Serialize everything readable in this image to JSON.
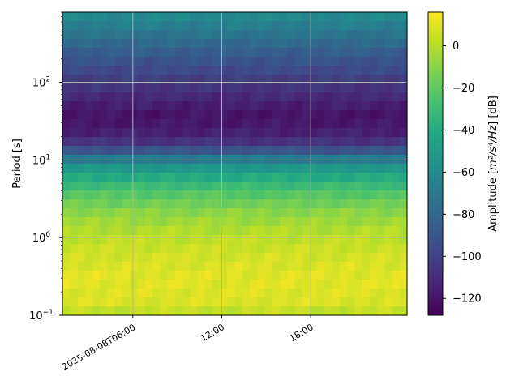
{
  "chart_data": {
    "type": "heatmap",
    "title": "",
    "xlabel": "",
    "ylabel": "Period [s]",
    "colorbar_label_prefix": "Amplitude [",
    "colorbar_label_unit": "m²/s⁴/Hz",
    "colorbar_label_suffix": "] [dB]",
    "colormap": "viridis",
    "x_axis": {
      "type": "time",
      "start": "2025-08-08T01:15:00",
      "end": "2025-08-09T00:30:00",
      "ticks": [
        {
          "time": "2025-08-08T06:00",
          "label": "2025-08-08T06:00"
        },
        {
          "time": "2025-08-08T12:00",
          "label": "12:00"
        },
        {
          "time": "2025-08-08T18:00",
          "label": "18:00"
        }
      ]
    },
    "y_axis": {
      "type": "log",
      "ylim": [
        0.1,
        800
      ],
      "ticks": [
        {
          "value": 0.1,
          "base": "10",
          "exp": "−1"
        },
        {
          "value": 1,
          "base": "10",
          "exp": "0"
        },
        {
          "value": 10,
          "base": "10",
          "exp": "1"
        },
        {
          "value": 100,
          "base": "10",
          "exp": "2"
        }
      ]
    },
    "colorbar": {
      "vmin": -128,
      "vmax": 16,
      "ticks": [
        0,
        -20,
        -40,
        -60,
        -80,
        -100,
        -120
      ]
    },
    "period_profile_db": [
      {
        "period": 0.1,
        "db": 0
      },
      {
        "period": 0.14,
        "db": 8
      },
      {
        "period": 0.3,
        "db": 10
      },
      {
        "period": 0.6,
        "db": 6
      },
      {
        "period": 1.0,
        "db": 2
      },
      {
        "period": 2.0,
        "db": -8
      },
      {
        "period": 4.0,
        "db": -25
      },
      {
        "period": 6.0,
        "db": -40
      },
      {
        "period": 9.0,
        "db": -58
      },
      {
        "period": 12.0,
        "db": -82
      },
      {
        "period": 16.0,
        "db": -105
      },
      {
        "period": 25.0,
        "db": -118
      },
      {
        "period": 40.0,
        "db": -120
      },
      {
        "period": 70.0,
        "db": -110
      },
      {
        "period": 120.0,
        "db": -100
      },
      {
        "period": 250.0,
        "db": -85
      },
      {
        "period": 500.0,
        "db": -68
      },
      {
        "period": 800.0,
        "db": -58
      }
    ],
    "grid": true
  }
}
